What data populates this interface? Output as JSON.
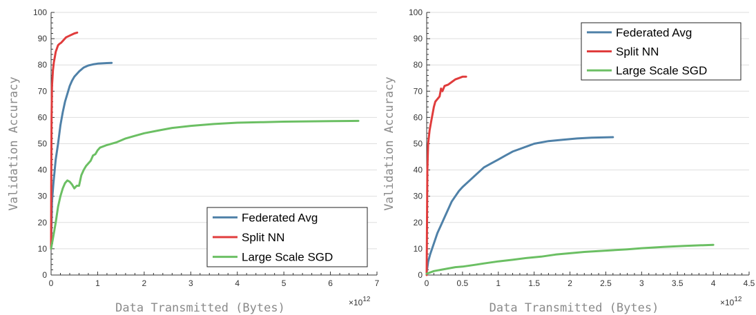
{
  "colors": {
    "federated": "#4f81a8",
    "split": "#e03c3c",
    "sgd": "#6bbf63"
  },
  "chart_data": [
    {
      "type": "line",
      "xlabel": "Data Transmitted (Bytes)",
      "ylabel": "Validation Accuracy",
      "x_multiplier": "×10",
      "x_multiplier_exp": "12",
      "xlim": [
        0,
        7
      ],
      "ylim": [
        0,
        100
      ],
      "xticks": [
        0,
        1,
        2,
        3,
        4,
        5,
        6,
        7
      ],
      "xtick_labels": [
        "0",
        "1",
        "2",
        "3",
        "4",
        "5",
        "6",
        "7"
      ],
      "yticks": [
        0,
        10,
        20,
        30,
        40,
        50,
        60,
        70,
        80,
        90,
        100
      ],
      "ytick_labels": [
        "0",
        "10",
        "20",
        "30",
        "40",
        "50",
        "60",
        "70",
        "80",
        "90",
        "100"
      ],
      "grid": true,
      "legend": "bottom-right",
      "series": [
        {
          "name": "Federated Avg",
          "color": "#4f81a8",
          "x": [
            0,
            0.02,
            0.05,
            0.1,
            0.15,
            0.2,
            0.25,
            0.3,
            0.35,
            0.4,
            0.45,
            0.5,
            0.6,
            0.7,
            0.8,
            0.9,
            1.0,
            1.1,
            1.2,
            1.3
          ],
          "y": [
            10,
            28,
            35,
            44,
            50,
            57,
            62,
            66,
            69,
            72,
            74,
            75.5,
            77.5,
            79,
            79.8,
            80.2,
            80.5,
            80.6,
            80.7,
            80.8
          ]
        },
        {
          "name": "Split NN",
          "color": "#e03c3c",
          "x": [
            0,
            0.005,
            0.01,
            0.02,
            0.04,
            0.06,
            0.08,
            0.1,
            0.12,
            0.15,
            0.18,
            0.22,
            0.27,
            0.32,
            0.38,
            0.44,
            0.5,
            0.56
          ],
          "y": [
            10,
            40,
            60,
            72,
            78,
            81,
            83,
            85,
            86,
            87.5,
            88,
            88.5,
            89.5,
            90.5,
            91,
            91.5,
            92,
            92.3
          ]
        },
        {
          "name": "Large Scale SGD",
          "color": "#6bbf63",
          "x": [
            0,
            0.05,
            0.1,
            0.15,
            0.2,
            0.25,
            0.3,
            0.35,
            0.4,
            0.45,
            0.5,
            0.55,
            0.6,
            0.65,
            0.7,
            0.75,
            0.8,
            0.85,
            0.9,
            0.95,
            1.0,
            1.05,
            1.2,
            1.4,
            1.6,
            1.8,
            2.0,
            2.3,
            2.6,
            3.0,
            3.5,
            4.0,
            4.5,
            5.0,
            5.5,
            6.0,
            6.6
          ],
          "y": [
            10,
            15,
            20,
            26,
            30,
            33,
            35,
            36,
            35.5,
            34.5,
            33,
            34,
            34,
            38,
            40,
            41.5,
            42.5,
            43.5,
            45.5,
            46,
            47.5,
            48.5,
            49.5,
            50.5,
            52,
            53,
            54,
            55,
            56,
            56.8,
            57.5,
            58,
            58.2,
            58.4,
            58.5,
            58.6,
            58.7
          ]
        }
      ]
    },
    {
      "type": "line",
      "xlabel": "Data Transmitted (Bytes)",
      "ylabel": "Validation Accuracy",
      "x_multiplier": "×10",
      "x_multiplier_exp": "12",
      "xlim": [
        0,
        4.5
      ],
      "ylim": [
        0,
        100
      ],
      "xticks": [
        0,
        0.5,
        1,
        1.5,
        2,
        2.5,
        3,
        3.5,
        4,
        4.5
      ],
      "xtick_labels": [
        "0",
        "0.5",
        "1",
        "1.5",
        "2",
        "2.5",
        "3",
        "3.5",
        "4",
        "4.5"
      ],
      "yticks": [
        0,
        10,
        20,
        30,
        40,
        50,
        60,
        70,
        80,
        90,
        100
      ],
      "ytick_labels": [
        "0",
        "10",
        "20",
        "30",
        "40",
        "50",
        "60",
        "70",
        "80",
        "90",
        "100"
      ],
      "grid": true,
      "legend": "top-right",
      "series": [
        {
          "name": "Federated Avg",
          "color": "#4f81a8",
          "x": [
            0,
            0.02,
            0.05,
            0.1,
            0.15,
            0.2,
            0.25,
            0.3,
            0.35,
            0.4,
            0.45,
            0.5,
            0.6,
            0.7,
            0.8,
            0.9,
            1.0,
            1.1,
            1.2,
            1.3,
            1.4,
            1.5,
            1.7,
            1.9,
            2.1,
            2.3,
            2.6
          ],
          "y": [
            1,
            5,
            8,
            12,
            16,
            19,
            22,
            25,
            28,
            30,
            32,
            33.5,
            36,
            38.5,
            41,
            42.5,
            44,
            45.5,
            47,
            48,
            49,
            50,
            51,
            51.5,
            52,
            52.3,
            52.5
          ]
        },
        {
          "name": "Split NN",
          "color": "#e03c3c",
          "x": [
            0,
            0.01,
            0.02,
            0.04,
            0.06,
            0.08,
            0.1,
            0.12,
            0.15,
            0.18,
            0.2,
            0.22,
            0.25,
            0.3,
            0.35,
            0.4,
            0.45,
            0.5,
            0.55
          ],
          "y": [
            0,
            40,
            50,
            55,
            58,
            61,
            64,
            66,
            67,
            68,
            71,
            70,
            72,
            72.5,
            73.5,
            74.5,
            75,
            75.5,
            75.5
          ]
        },
        {
          "name": "Large Scale SGD",
          "color": "#6bbf63",
          "x": [
            0,
            0.1,
            0.2,
            0.3,
            0.4,
            0.5,
            0.6,
            0.7,
            0.8,
            0.9,
            1.0,
            1.2,
            1.4,
            1.6,
            1.8,
            2.0,
            2.2,
            2.5,
            2.8,
            3.0,
            3.3,
            3.6,
            4.0
          ],
          "y": [
            0.5,
            1.5,
            2,
            2.5,
            3,
            3.2,
            3.6,
            4,
            4.4,
            4.8,
            5.2,
            5.8,
            6.5,
            7,
            7.8,
            8.3,
            8.8,
            9.3,
            9.8,
            10.2,
            10.7,
            11.1,
            11.5
          ]
        }
      ]
    }
  ]
}
